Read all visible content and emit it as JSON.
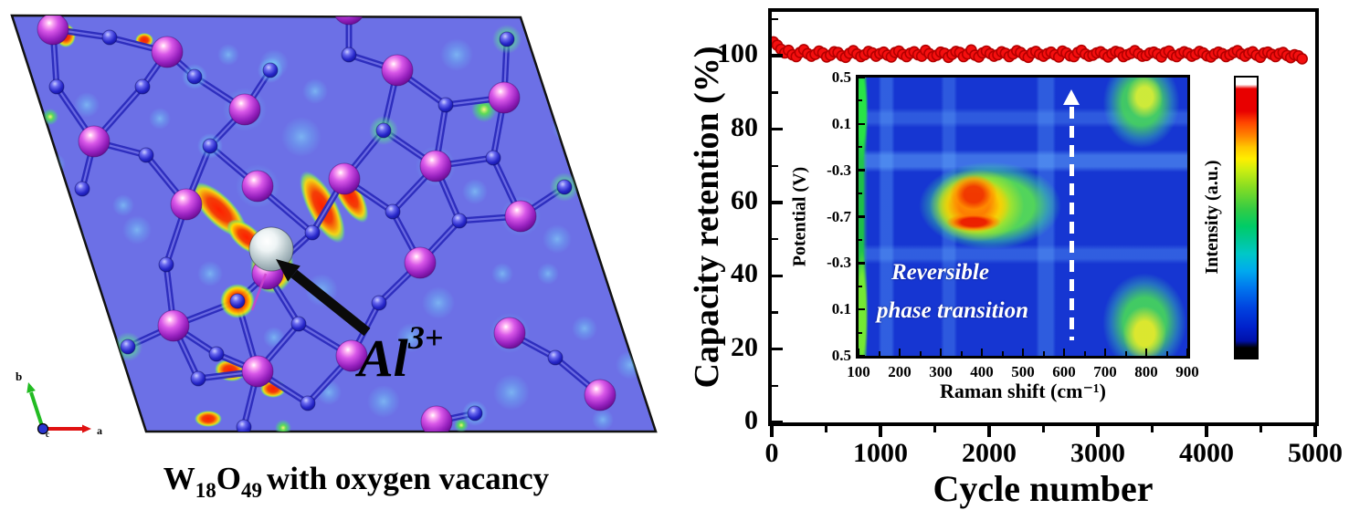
{
  "left_panel": {
    "caption": {
      "f1": "W",
      "s1": "18",
      "f2": "O",
      "s2": "49",
      "rest": "with  oxygen vacancy"
    },
    "ion_label": {
      "base": "Al",
      "sup": "3+"
    },
    "triad": {
      "a": "a",
      "b": "b",
      "c": "c"
    },
    "colors": {
      "slab": "#6c70e6",
      "w_atom": "#b13cc8",
      "o_atom": "#2a2ac8",
      "al_atom": "#aebfc4",
      "hotspot": "#ff2a00"
    }
  },
  "chart_data": [
    {
      "type": "scatter",
      "xlabel": "Cycle number",
      "ylabel": "Capacity retention (%)",
      "xlim": [
        0,
        5000
      ],
      "ylim": [
        0,
        112
      ],
      "x_ticks": [
        0,
        1000,
        2000,
        3000,
        4000,
        5000
      ],
      "x_minor_step": 500,
      "y_ticks": [
        0,
        20,
        40,
        60,
        80,
        100
      ],
      "y_minor_step": 10,
      "grid": false,
      "marker": {
        "shape": "circle",
        "fill": "#f50f0f",
        "edge": "#b30000"
      },
      "band_description": "capacity retention stays near 100% over 5000 cycles",
      "series": [
        {
          "name": "capacity retention",
          "x_start": 15,
          "x_step": 35,
          "y": [
            103.8,
            102.9,
            101.8,
            100.8,
            101.5,
            100.3,
            99.8,
            100.9,
            101.7,
            100.6,
            99.9,
            100.4,
            101.3,
            100.8,
            99.7,
            100.2,
            101.1,
            100.9,
            100.0,
            99.6,
            100.7,
            101.4,
            100.5,
            99.8,
            100.3,
            101.2,
            100.8,
            99.9,
            100.6,
            101.0,
            100.2,
            99.7,
            100.9,
            101.3,
            100.4,
            99.8,
            100.7,
            101.1,
            100.3,
            99.9,
            101.5,
            100.6,
            99.8,
            100.2,
            101.0,
            100.7,
            99.6,
            100.4,
            101.2,
            100.9,
            99.8,
            100.5,
            101.6,
            100.2,
            99.7,
            100.8,
            101.3,
            100.6,
            99.9,
            100.3,
            101.1,
            100.7,
            99.8,
            100.5,
            101.4,
            100.9,
            100.1,
            99.6,
            100.8,
            101.2,
            100.4,
            99.9,
            100.6,
            101.0,
            100.3,
            99.7,
            101.3,
            100.8,
            100.0,
            99.8,
            100.9,
            101.5,
            100.5,
            99.9,
            100.2,
            100.8,
            101.1,
            100.4,
            99.7,
            100.6,
            101.2,
            100.9,
            99.8,
            100.3,
            100.7,
            101.4,
            100.6,
            99.9,
            100.1,
            100.8,
            101.0,
            100.5,
            99.7,
            100.9,
            101.3,
            100.2,
            99.8,
            100.6,
            101.1,
            100.7,
            99.9,
            100.4,
            101.2,
            100.8,
            100.0,
            99.7,
            100.5,
            101.0,
            100.6,
            99.8,
            100.3,
            100.9,
            101.4,
            100.5,
            99.9,
            100.7,
            101.1,
            100.2,
            99.6,
            100.8,
            101.0,
            100.4,
            99.8,
            100.6,
            100.9,
            100.1,
            99.5,
            100.3,
            100.0,
            99.2
          ]
        }
      ]
    },
    {
      "type": "heatmap",
      "xlabel": "Raman shift (cm⁻¹)",
      "ylabel": "Potential (V)",
      "x_ticks": [
        100,
        200,
        300,
        400,
        500,
        600,
        700,
        800,
        900
      ],
      "y_ticks": [
        "0.5",
        "0.1",
        "-0.3",
        "-0.7",
        "-0.3",
        "0.1",
        "0.5"
      ],
      "colorbar_label": "Intensity (a.u.)",
      "annotation": {
        "line1": "Reversible",
        "line2": "phase transition"
      },
      "arrow": {
        "raman_position": 620,
        "direction": "up",
        "style": "white dashed"
      },
      "features": [
        {
          "region": "Raman 250-550 cm⁻¹, potential -0.3 to -0.9 V (mid sweep)",
          "intensity": "strongest: red/orange core inside green band"
        },
        {
          "region": "Raman ~790 cm⁻¹, top of map (0.5-0.2 V)",
          "intensity": "medium: green with yellow core"
        },
        {
          "region": "Raman ~790 cm⁻¹, bottom of map (0.2-0.5 V)",
          "intensity": "medium-strong: green with yellow core"
        },
        {
          "region": "Raman ~100 cm⁻¹ left edge",
          "intensity": "green stripe"
        }
      ],
      "colors": {
        "background": "#1636d2"
      }
    }
  ]
}
